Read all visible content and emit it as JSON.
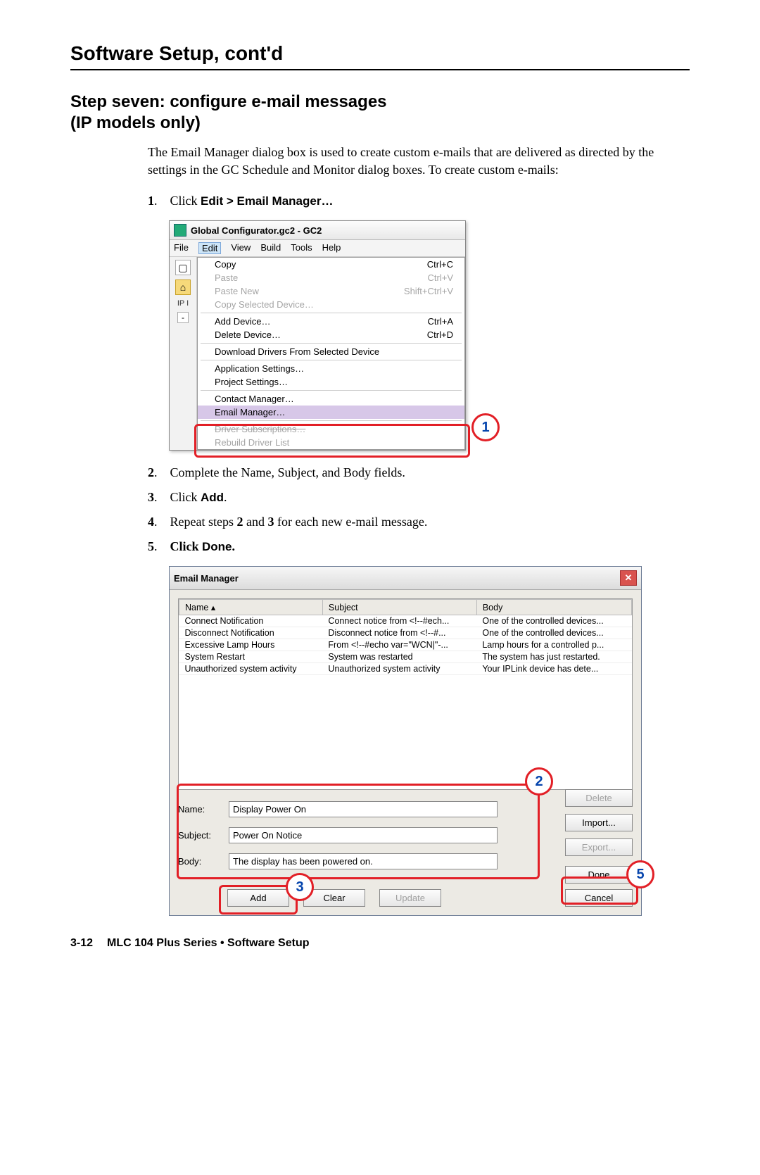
{
  "section_title": "Software Setup, cont'd",
  "step_title_line1": "Step seven: configure e-mail messages",
  "step_title_line2": "(IP models only)",
  "intro_paragraph": "The Email Manager dialog box is used to create custom e-mails that are delivered as directed by the settings in the GC Schedule and Monitor dialog boxes.  To create custom e-mails:",
  "steps_a": [
    {
      "num": "1",
      "pre": "Click ",
      "bold": "Edit > Email Manager…",
      "post": ""
    }
  ],
  "steps_b": [
    {
      "num": "2",
      "pre": "Complete the Name, Subject, and Body fields.",
      "bold": "",
      "post": ""
    },
    {
      "num": "3",
      "pre": "Click ",
      "bold": "Add",
      "post": "."
    },
    {
      "num": "4",
      "pre": "Repeat steps ",
      "boldserif1": "2",
      "mid": " and ",
      "boldserif2": "3",
      "post": " for each new e-mail message."
    },
    {
      "num": "5",
      "pre": "Click ",
      "bold": "Done",
      "post": "."
    }
  ],
  "ss1": {
    "title": "Global Configurator.gc2 - GC2",
    "menubar": [
      "File",
      "Edit",
      "View",
      "Build",
      "Tools",
      "Help"
    ],
    "sidebar_label": "IP I",
    "items": [
      {
        "label": "Copy",
        "sc": "Ctrl+C",
        "dis": false
      },
      {
        "label": "Paste",
        "sc": "Ctrl+V",
        "dis": true
      },
      {
        "label": "Paste New",
        "sc": "Shift+Ctrl+V",
        "dis": true
      },
      {
        "label": "Copy Selected Device…",
        "sc": "",
        "dis": true
      },
      {
        "sep": true
      },
      {
        "label": "Add Device…",
        "sc": "Ctrl+A",
        "dis": false
      },
      {
        "label": "Delete Device…",
        "sc": "Ctrl+D",
        "dis": false
      },
      {
        "sep": true
      },
      {
        "label": "Download Drivers From Selected Device",
        "sc": "",
        "dis": false
      },
      {
        "sep": true
      },
      {
        "label": "Application Settings…",
        "sc": "",
        "dis": false
      },
      {
        "label": "Project Settings…",
        "sc": "",
        "dis": false
      },
      {
        "sep": true
      },
      {
        "label": "Contact Manager…",
        "sc": "",
        "dis": false
      },
      {
        "label": "Email Manager…",
        "sc": "",
        "dis": false,
        "hl": true
      },
      {
        "sep": true
      },
      {
        "label": "Driver Subscriptions…",
        "sc": "",
        "dis": true,
        "strike": true
      },
      {
        "label": "Rebuild Driver List",
        "sc": "",
        "dis": true
      }
    ],
    "callout_1": "1"
  },
  "ss2": {
    "title": "Email Manager",
    "columns": [
      "Name   ▴",
      "Subject",
      "Body"
    ],
    "rows": [
      [
        "Connect Notification",
        "Connect notice from <!--#ech...",
        "One of the controlled devices..."
      ],
      [
        "Disconnect Notification",
        "Disconnect notice from <!--#...",
        "One of the controlled devices..."
      ],
      [
        "Excessive Lamp Hours",
        "From <!--#echo var=\"WCN|\"-...",
        "Lamp hours for a controlled p..."
      ],
      [
        "System Restart",
        "System was restarted",
        "The system has just restarted."
      ],
      [
        "Unauthorized system activity",
        "Unauthorized system activity",
        "Your IPLink device has dete..."
      ]
    ],
    "form": {
      "name_label": "Name:",
      "name_value": "Display Power On",
      "subject_label": "Subject:",
      "subject_value": "Power On Notice",
      "body_label": "Body:",
      "body_value": "The display has been powered on."
    },
    "right_buttons": {
      "delete": "Delete",
      "import": "Import...",
      "export": "Export..."
    },
    "bottom_buttons": {
      "add": "Add",
      "clear": "Clear",
      "update": "Update"
    },
    "done_cancel": {
      "done": "Done",
      "cancel": "Cancel"
    },
    "callout_2": "2",
    "callout_3": "3",
    "callout_5": "5"
  },
  "footer": {
    "page": "3-12",
    "text": "MLC 104 Plus Series • Software Setup"
  },
  "colors": {
    "callout_border": "#e21f26",
    "callout_text": "#0645ad"
  }
}
